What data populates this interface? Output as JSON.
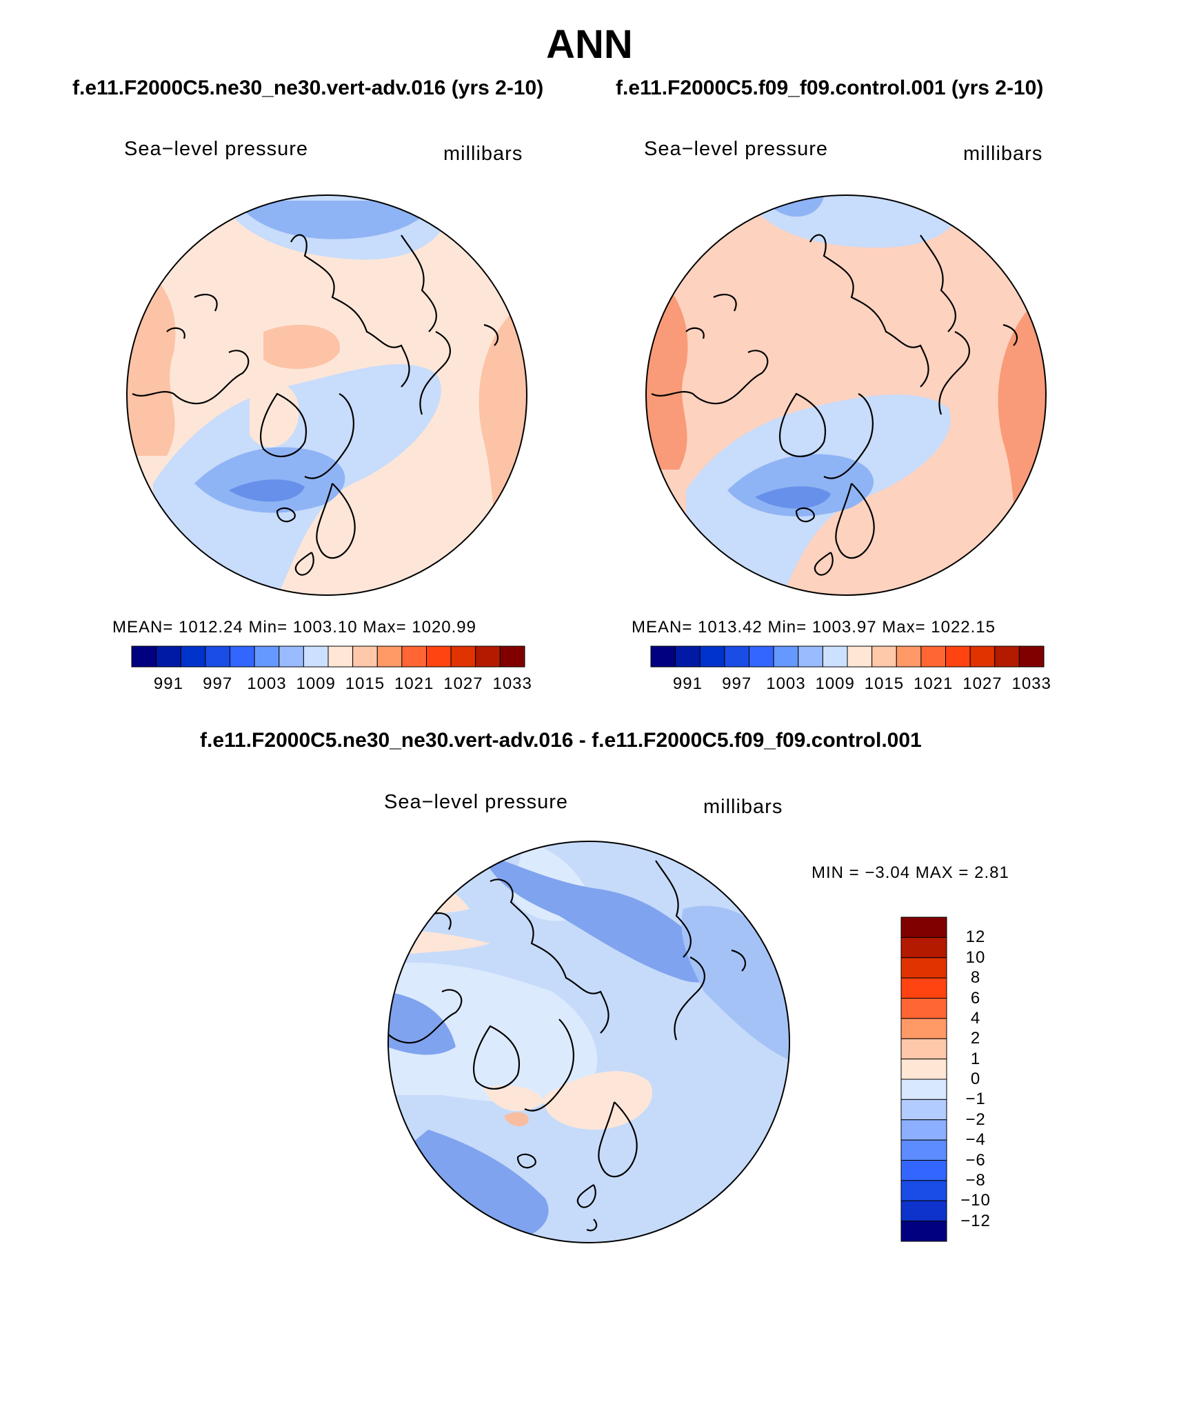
{
  "page_title": "ANN",
  "panels": [
    {
      "case": "f.e11.F2000C5.ne30_ne30.vert-adv.016 (yrs 2-10)",
      "variable": "Sea−level pressure",
      "units": "millibars",
      "stats": "MEAN=  1012.24   Min=  1003.10   Max=  1020.99"
    },
    {
      "case": "f.e11.F2000C5.f09_f09.control.001 (yrs 2-10)",
      "variable": "Sea−level pressure",
      "units": "millibars",
      "stats": "MEAN=  1013.42   Min=  1003.97   Max=  1022.15"
    }
  ],
  "abs_colorbar": {
    "colors": [
      "#000080",
      "#001aa6",
      "#0033cc",
      "#1a4de6",
      "#3366ff",
      "#6699ff",
      "#99bbff",
      "#cce0ff",
      "#ffe6d5",
      "#ffc8aa",
      "#ff9966",
      "#ff6633",
      "#ff4411",
      "#e03300",
      "#b31a00",
      "#800000"
    ],
    "tick_labels": [
      "991",
      "997",
      "1003",
      "1009",
      "1015",
      "1021",
      "1027",
      "1033"
    ]
  },
  "diff_panel": {
    "title": "f.e11.F2000C5.ne30_ne30.vert-adv.016 - f.e11.F2000C5.f09_f09.control.001",
    "variable": "Sea−level pressure",
    "units": "millibars",
    "minmax": "MIN =    −3.04  MAX =      2.81"
  },
  "diff_colorbar": {
    "colors": [
      "#800000",
      "#b31a00",
      "#e03300",
      "#ff4411",
      "#ff6633",
      "#ff9966",
      "#ffc8aa",
      "#ffe6d5",
      "#d8e8ff",
      "#b3ccff",
      "#8cb0ff",
      "#5c8cff",
      "#3366ff",
      "#1a4de6",
      "#0d33cc",
      "#000080"
    ],
    "tick_labels": [
      "12",
      "10",
      "8",
      "6",
      "4",
      "2",
      "1",
      "0",
      "−1",
      "−2",
      "−4",
      "−6",
      "−8",
      "−10",
      "−12"
    ]
  },
  "map_fill": {
    "panel1": {
      "base": "#fde6d8",
      "warm": "#fcc3a6",
      "cool1": "#c8dcfb",
      "cool2": "#8fb4f5",
      "cool3": "#6690ea"
    },
    "panel2": {
      "base": "#fdd2bf",
      "warm": "#f99b78",
      "cool1": "#c8dcfb",
      "cool2": "#8fb4f5",
      "cool3": "#6690ea"
    },
    "diff": {
      "base": "#c6dbfa",
      "light": "#dceafd",
      "mid": "#a4c2f5",
      "dark": "#7fa3ee",
      "warm": "#fde6d8",
      "warm2": "#f8bda0"
    }
  }
}
